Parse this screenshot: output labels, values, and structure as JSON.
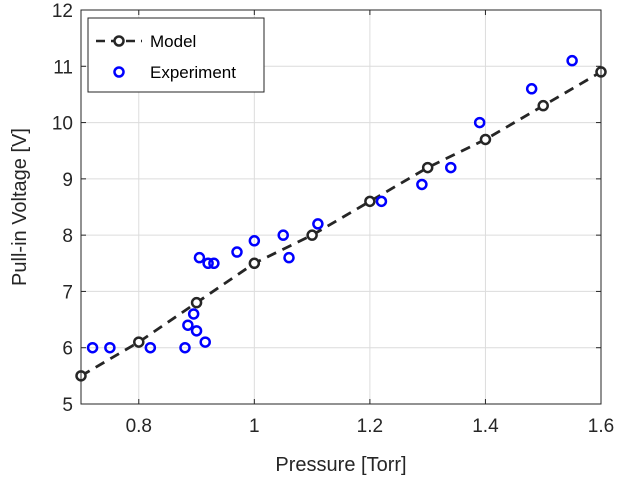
{
  "chart_data": {
    "type": "scatter",
    "title": "",
    "xlabel": "Pressure [Torr]",
    "ylabel": "Pull-in Voltage [V]",
    "xlim": [
      0.7,
      1.6
    ],
    "ylim": [
      5,
      12
    ],
    "xticks": [
      0.8,
      1,
      1.2,
      1.4,
      1.6
    ],
    "xtick_labels": [
      "0.8",
      "1",
      "1.2",
      "1.4",
      "1.6"
    ],
    "yticks": [
      5,
      6,
      7,
      8,
      9,
      10,
      11,
      12
    ],
    "ytick_labels": [
      "5",
      "6",
      "7",
      "8",
      "9",
      "10",
      "11",
      "12"
    ],
    "grid": true,
    "legend_position": "top-left",
    "series": [
      {
        "name": "Model",
        "style": "dashed-line-with-circle-markers",
        "color": "#262626",
        "points": [
          [
            0.7,
            5.5
          ],
          [
            0.8,
            6.1
          ],
          [
            0.9,
            6.8
          ],
          [
            1.0,
            7.5
          ],
          [
            1.1,
            8.0
          ],
          [
            1.2,
            8.6
          ],
          [
            1.3,
            9.2
          ],
          [
            1.4,
            9.7
          ],
          [
            1.5,
            10.3
          ],
          [
            1.6,
            10.9
          ]
        ]
      },
      {
        "name": "Experiment",
        "style": "circle-markers",
        "color": "#0000ff",
        "points": [
          [
            0.72,
            6.0
          ],
          [
            0.75,
            6.0
          ],
          [
            0.82,
            6.0
          ],
          [
            0.88,
            6.0
          ],
          [
            0.885,
            6.4
          ],
          [
            0.895,
            6.6
          ],
          [
            0.9,
            6.3
          ],
          [
            0.905,
            7.6
          ],
          [
            0.915,
            6.1
          ],
          [
            0.92,
            7.5
          ],
          [
            0.93,
            7.5
          ],
          [
            0.97,
            7.7
          ],
          [
            1.0,
            7.9
          ],
          [
            1.05,
            8.0
          ],
          [
            1.06,
            7.6
          ],
          [
            1.11,
            8.2
          ],
          [
            1.22,
            8.6
          ],
          [
            1.29,
            8.9
          ],
          [
            1.34,
            9.2
          ],
          [
            1.39,
            10.0
          ],
          [
            1.48,
            10.6
          ],
          [
            1.55,
            11.1
          ]
        ]
      }
    ]
  }
}
